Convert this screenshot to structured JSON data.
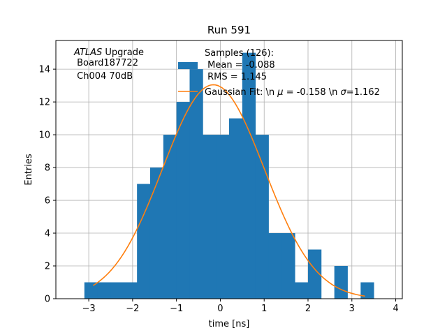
{
  "chart_data": {
    "type": "bar",
    "title": "Run 591",
    "xlabel": "time [ns]",
    "ylabel": "Entries",
    "xlim": [
      -3.75,
      4.15
    ],
    "ylim": [
      0,
      15.75
    ],
    "xticks": [
      -3,
      -2,
      -1,
      0,
      1,
      2,
      3,
      4
    ],
    "yticks": [
      0,
      2,
      4,
      6,
      8,
      10,
      12,
      14
    ],
    "grid": true,
    "bin_width": 0.3,
    "bins": [
      {
        "x0": -3.1,
        "count": 1
      },
      {
        "x0": -2.8,
        "count": 1
      },
      {
        "x0": -2.5,
        "count": 1
      },
      {
        "x0": -2.2,
        "count": 1
      },
      {
        "x0": -1.9,
        "count": 7
      },
      {
        "x0": -1.6,
        "count": 8
      },
      {
        "x0": -1.3,
        "count": 10
      },
      {
        "x0": -1.0,
        "count": 12
      },
      {
        "x0": -0.7,
        "count": 14
      },
      {
        "x0": -0.4,
        "count": 10
      },
      {
        "x0": -0.1,
        "count": 10
      },
      {
        "x0": 0.2,
        "count": 11
      },
      {
        "x0": 0.5,
        "count": 15
      },
      {
        "x0": 0.8,
        "count": 10
      },
      {
        "x0": 1.1,
        "count": 4
      },
      {
        "x0": 1.4,
        "count": 4
      },
      {
        "x0": 1.7,
        "count": 1
      },
      {
        "x0": 2.0,
        "count": 3
      },
      {
        "x0": 2.3,
        "count": 0
      },
      {
        "x0": 2.6,
        "count": 2
      },
      {
        "x0": 2.9,
        "count": 0
      },
      {
        "x0": 3.2,
        "count": 1
      }
    ],
    "fit": {
      "label": "Gaussian Fit: \\n $\\mu$ = -0.158 \\n $\\sigma$=1.162",
      "mu": -0.158,
      "sigma": 1.162,
      "amplitude": 13.05,
      "x_range": [
        -2.9,
        3.3
      ]
    },
    "legend": {
      "samples_line1": "Samples (126):",
      "samples_line2": " Mean = -0.088",
      "samples_line3": " RMS = 1.145",
      "fit_prefix": "Gaussian Fit: \\n ",
      "fit_mu_symbol": "μ",
      "fit_middle": " = -0.158 \\n ",
      "fit_sigma_symbol": "σ",
      "fit_suffix": "=1.162"
    },
    "annotation": {
      "atlas": "ATLAS",
      "atlas_suffix": " Upgrade",
      "line2": " Board187722",
      "line3": " Ch004 70dB"
    },
    "colors": {
      "bars": "#1f77b4",
      "fit": "#ff7f0e",
      "grid": "#b0b0b0"
    }
  }
}
